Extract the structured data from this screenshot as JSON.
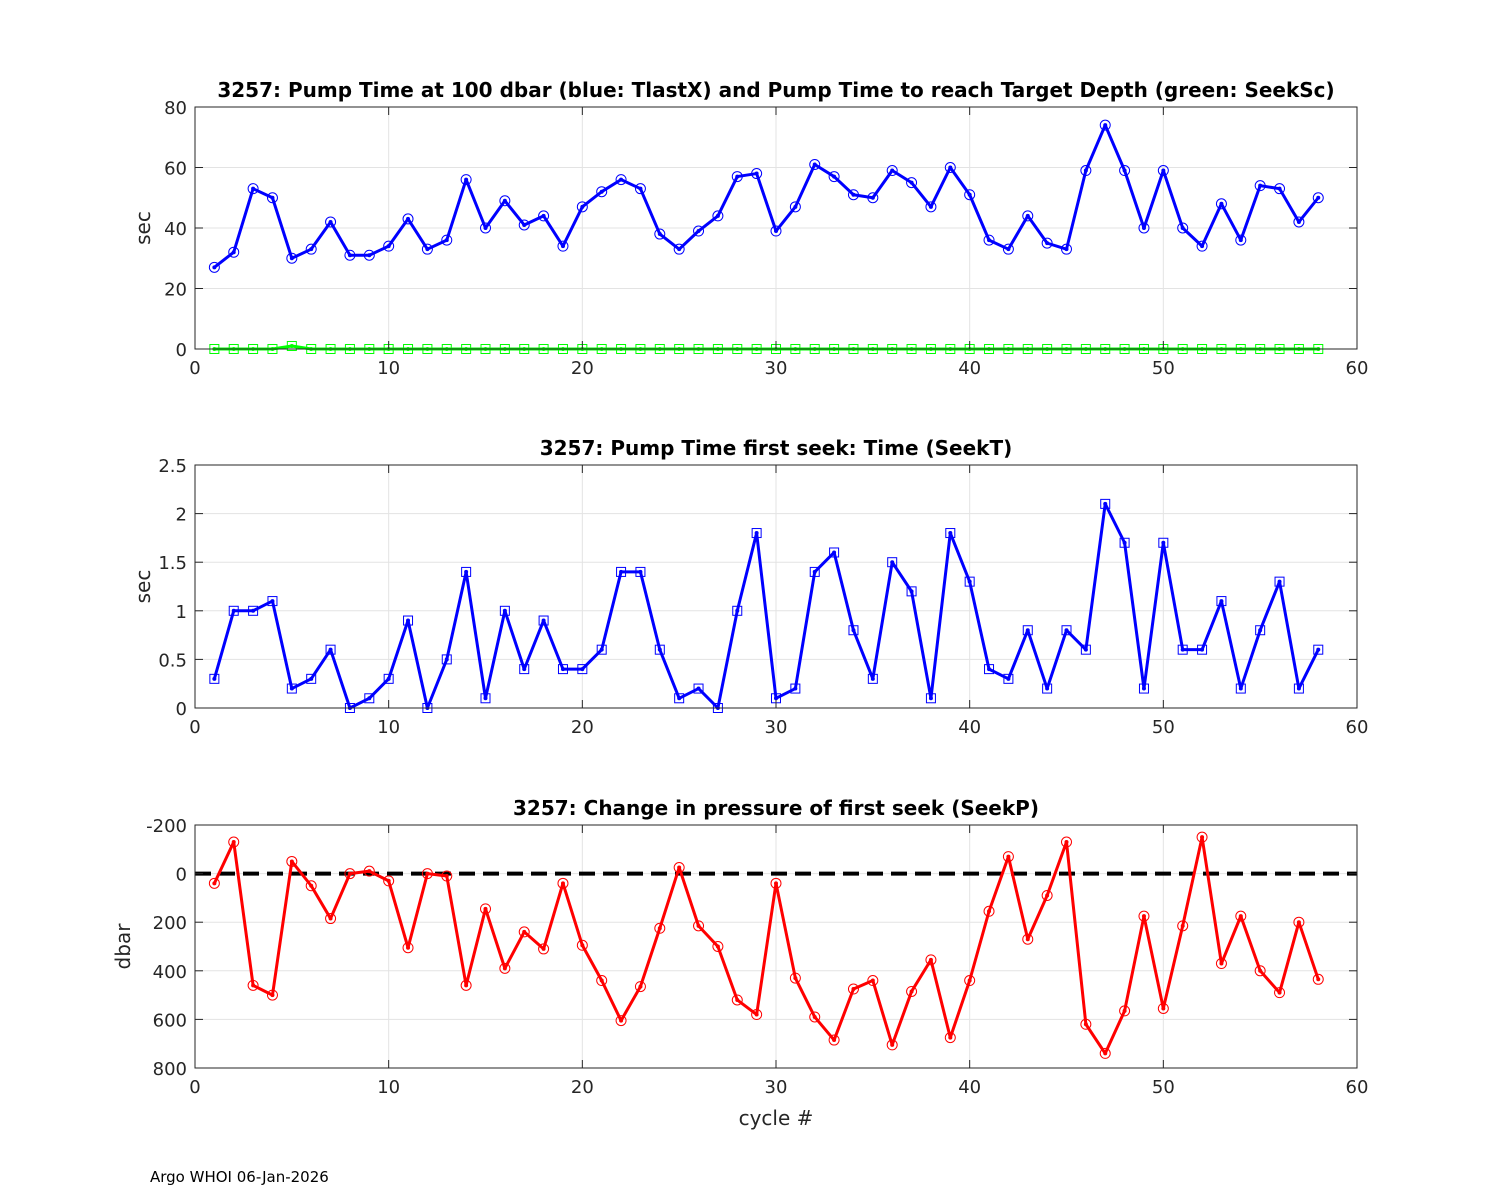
{
  "footer": "Argo WHOI 06-Jan-2026",
  "chart_data": [
    {
      "type": "line",
      "title": "3257:  Pump Time at 100 dbar (blue: TlastX) and Pump Time to reach Target Depth (green: SeekSc)",
      "xlabel": "",
      "ylabel": "sec",
      "xlim": [
        0,
        60
      ],
      "ylim": [
        0,
        80
      ],
      "y_reversed": false,
      "xticks": [
        0,
        10,
        20,
        30,
        40,
        50,
        60
      ],
      "yticks": [
        0,
        20,
        40,
        60,
        80
      ],
      "xtick_labels": [
        "0",
        "10",
        "20",
        "30",
        "40",
        "50",
        "60"
      ],
      "ytick_labels": [
        "0",
        "20",
        "40",
        "60",
        "80"
      ],
      "grid": true,
      "x": [
        1,
        2,
        3,
        4,
        5,
        6,
        7,
        8,
        9,
        10,
        11,
        12,
        13,
        14,
        15,
        16,
        17,
        18,
        19,
        20,
        21,
        22,
        23,
        24,
        25,
        26,
        27,
        28,
        29,
        30,
        31,
        32,
        33,
        34,
        35,
        36,
        37,
        38,
        39,
        40,
        41,
        42,
        43,
        44,
        45,
        46,
        47,
        48,
        49,
        50,
        51,
        52,
        53,
        54,
        55,
        56,
        57,
        58
      ],
      "series": [
        {
          "name": "TlastX",
          "color": "#0000ff",
          "marker": "circle",
          "values": [
            27,
            32,
            53,
            50,
            30,
            33,
            42,
            31,
            31,
            34,
            43,
            33,
            36,
            56,
            40,
            49,
            41,
            44,
            34,
            47,
            52,
            56,
            53,
            38,
            33,
            39,
            44,
            57,
            58,
            39,
            47,
            61,
            57,
            51,
            50,
            59,
            55,
            47,
            60,
            51,
            36,
            33,
            44,
            35,
            33,
            59,
            74,
            59,
            40,
            59,
            40,
            34,
            48,
            36,
            54,
            53,
            42,
            50
          ]
        },
        {
          "name": "SeekSc",
          "color": "#00ff00",
          "marker": "square",
          "values": [
            0,
            0,
            0,
            0,
            1,
            0,
            0,
            0,
            0,
            0,
            0,
            0,
            0,
            0,
            0,
            0,
            0,
            0,
            0,
            0,
            0,
            0,
            0,
            0,
            0,
            0,
            0,
            0,
            0,
            0,
            0,
            0,
            0,
            0,
            0,
            0,
            0,
            0,
            0,
            0,
            0,
            0,
            0,
            0,
            0,
            0,
            0,
            0,
            0,
            0,
            0,
            0,
            0,
            0,
            0,
            0,
            0,
            0
          ]
        }
      ]
    },
    {
      "type": "line",
      "title": "3257: Pump Time first seek: Time (SeekT)",
      "xlabel": "",
      "ylabel": "sec",
      "xlim": [
        0,
        60
      ],
      "ylim": [
        0,
        2.5
      ],
      "y_reversed": false,
      "xticks": [
        0,
        10,
        20,
        30,
        40,
        50,
        60
      ],
      "yticks": [
        0,
        0.5,
        1,
        1.5,
        2,
        2.5
      ],
      "xtick_labels": [
        "0",
        "10",
        "20",
        "30",
        "40",
        "50",
        "60"
      ],
      "ytick_labels": [
        "0",
        "0.5",
        "1",
        "1.5",
        "2",
        "2.5"
      ],
      "grid": true,
      "x": [
        1,
        2,
        3,
        4,
        5,
        6,
        7,
        8,
        9,
        10,
        11,
        12,
        13,
        14,
        15,
        16,
        17,
        18,
        19,
        20,
        21,
        22,
        23,
        24,
        25,
        26,
        27,
        28,
        29,
        30,
        31,
        32,
        33,
        34,
        35,
        36,
        37,
        38,
        39,
        40,
        41,
        42,
        43,
        44,
        45,
        46,
        47,
        48,
        49,
        50,
        51,
        52,
        53,
        54,
        55,
        56,
        57,
        58
      ],
      "series": [
        {
          "name": "SeekT",
          "color": "#0000ff",
          "marker": "square",
          "values": [
            0.3,
            1.0,
            1.0,
            1.1,
            0.2,
            0.3,
            0.6,
            0.0,
            0.1,
            0.3,
            0.9,
            0.0,
            0.5,
            1.4,
            0.1,
            1.0,
            0.4,
            0.9,
            0.4,
            0.4,
            0.6,
            1.4,
            1.4,
            0.6,
            0.1,
            0.2,
            0.0,
            1.0,
            1.8,
            0.1,
            0.2,
            1.4,
            1.6,
            0.8,
            0.3,
            1.5,
            1.2,
            0.1,
            1.8,
            1.3,
            0.4,
            0.3,
            0.8,
            0.2,
            0.8,
            0.6,
            2.1,
            1.7,
            0.2,
            1.7,
            0.6,
            0.6,
            1.1,
            0.2,
            0.8,
            1.3,
            0.2,
            0.6
          ]
        }
      ]
    },
    {
      "type": "line",
      "title": "3257: Change in pressure of first seek (SeekP)",
      "xlabel": "cycle #",
      "ylabel": "dbar",
      "xlim": [
        0,
        60
      ],
      "ylim": [
        -200,
        800
      ],
      "y_reversed": true,
      "xticks": [
        0,
        10,
        20,
        30,
        40,
        50,
        60
      ],
      "yticks": [
        -200,
        0,
        200,
        400,
        600,
        800
      ],
      "xtick_labels": [
        "0",
        "10",
        "20",
        "30",
        "40",
        "50",
        "60"
      ],
      "ytick_labels": [
        "-200",
        "0",
        "200",
        "400",
        "600",
        "800"
      ],
      "grid": true,
      "reference_line": {
        "y": 0,
        "color": "#000000",
        "style": "dashed"
      },
      "x": [
        1,
        2,
        3,
        4,
        5,
        6,
        7,
        8,
        9,
        10,
        11,
        12,
        13,
        14,
        15,
        16,
        17,
        18,
        19,
        20,
        21,
        22,
        23,
        24,
        25,
        26,
        27,
        28,
        29,
        30,
        31,
        32,
        33,
        34,
        35,
        36,
        37,
        38,
        39,
        40,
        41,
        42,
        43,
        44,
        45,
        46,
        47,
        48,
        49,
        50,
        51,
        52,
        53,
        54,
        55,
        56,
        57,
        58
      ],
      "series": [
        {
          "name": "SeekP",
          "color": "#ff0000",
          "marker": "circle",
          "values": [
            40,
            -130,
            460,
            500,
            -50,
            50,
            185,
            0,
            -10,
            30,
            305,
            0,
            10,
            460,
            145,
            390,
            240,
            310,
            40,
            295,
            440,
            605,
            465,
            225,
            -25,
            215,
            300,
            520,
            580,
            40,
            430,
            590,
            685,
            475,
            440,
            705,
            485,
            355,
            675,
            440,
            155,
            -70,
            270,
            90,
            -130,
            620,
            740,
            565,
            175,
            555,
            215,
            -150,
            370,
            175,
            400,
            490,
            200,
            435
          ]
        }
      ]
    }
  ]
}
